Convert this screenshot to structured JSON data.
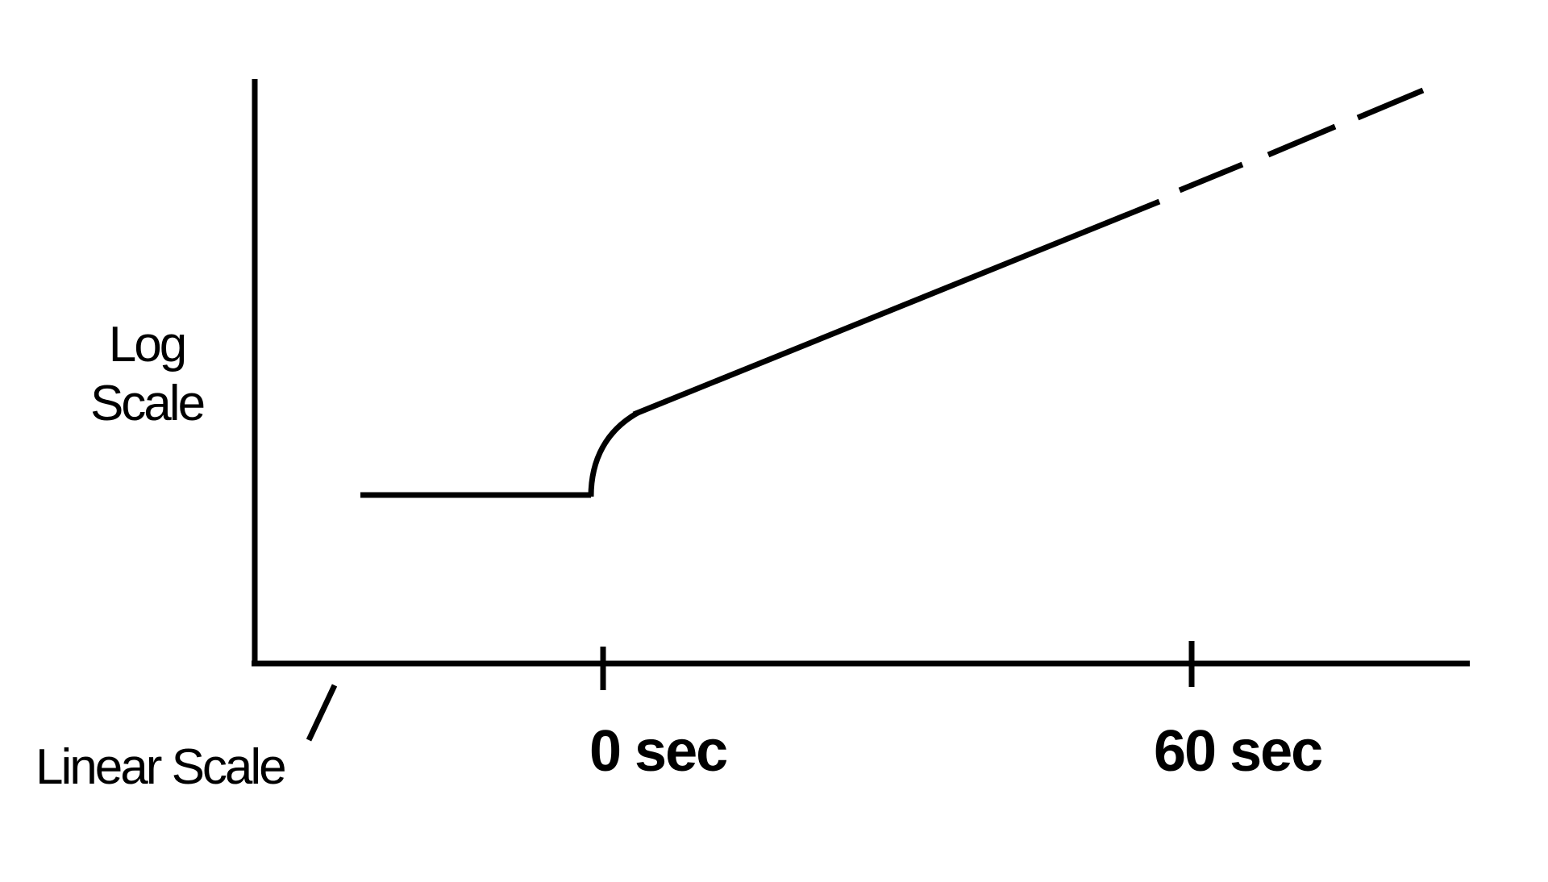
{
  "diagram": {
    "y_axis_label_line1": "Log",
    "y_axis_label_line2": "Scale",
    "x_axis_label": "Linear Scale",
    "tick_labels": [
      "0 sec",
      "60 sec"
    ],
    "colors": {
      "line": "#000000",
      "background": "#ffffff"
    }
  }
}
